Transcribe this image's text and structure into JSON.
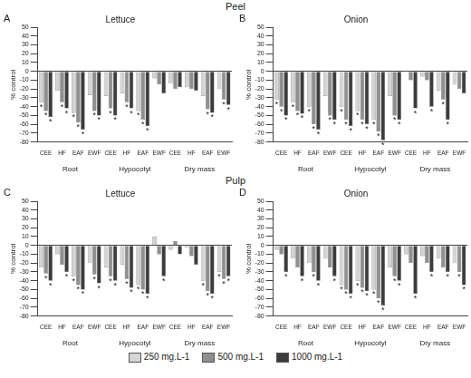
{
  "row_titles": [
    "Peel",
    "Pulp"
  ],
  "chart_data": [
    {
      "type": "bar",
      "panel": "A",
      "title": "Lettuce",
      "y_label": "% control",
      "categories": [
        "CEE",
        "HF",
        "EAF",
        "EWF",
        "CEE",
        "HF",
        "EAF",
        "EWF",
        "CEE",
        "HF",
        "EAF",
        "EWF"
      ],
      "groups": [
        "Root",
        "Hypocotyl",
        "Dry mass"
      ],
      "ylim": [
        -80,
        50
      ],
      "yticks": [
        -80,
        -70,
        -60,
        -50,
        -40,
        -30,
        -20,
        -10,
        0,
        10,
        20,
        30,
        40,
        50
      ],
      "grid": false,
      "series": [
        {
          "name": "250 mg.L-1",
          "color": "#d4d4d4",
          "values": [
            -35,
            -22,
            -47,
            -27,
            -28,
            -25,
            -45,
            -8,
            -14,
            -18,
            -28,
            -20
          ],
          "marks": [
            "*",
            null,
            "*",
            null,
            null,
            null,
            "*",
            null,
            null,
            null,
            null,
            null
          ]
        },
        {
          "name": "500 mg.L-1",
          "color": "#8f8f8f",
          "values": [
            -45,
            -35,
            -58,
            -45,
            -42,
            -35,
            -55,
            -15,
            -20,
            -20,
            -43,
            -32
          ],
          "marks": [
            "*",
            "*",
            "*",
            "*",
            "*",
            "*",
            "*",
            null,
            null,
            null,
            "*",
            "*"
          ]
        },
        {
          "name": "1000 mg.L-1",
          "color": "#3c3c3c",
          "values": [
            -52,
            -42,
            -66,
            -50,
            -50,
            -42,
            -62,
            -25,
            -18,
            -22,
            -47,
            -38
          ],
          "marks": [
            "*",
            "*",
            "*",
            "*",
            "*",
            "*",
            "*",
            null,
            null,
            null,
            "*",
            "*"
          ]
        }
      ]
    },
    {
      "type": "bar",
      "panel": "B",
      "title": "Onion",
      "y_label": "% control",
      "categories": [
        "CEE",
        "HF",
        "EAF",
        "EWF",
        "CEE",
        "HF",
        "EAF",
        "EWF",
        "CEE",
        "HF",
        "EAF",
        "EWF"
      ],
      "groups": [
        "Root",
        "Hypocotyl",
        "Dry mass"
      ],
      "ylim": [
        -80,
        50
      ],
      "yticks": [
        -80,
        -70,
        -60,
        -50,
        -40,
        -30,
        -20,
        -10,
        0,
        10,
        20,
        30,
        40,
        50
      ],
      "grid": false,
      "series": [
        {
          "name": "250 mg.L-1",
          "color": "#d4d4d4",
          "values": [
            -32,
            -35,
            -40,
            -28,
            -40,
            -45,
            -55,
            -28,
            1,
            -6,
            -22,
            -15
          ],
          "marks": [
            "*",
            "*",
            "*",
            null,
            "*",
            "*",
            "*",
            null,
            null,
            null,
            null,
            null
          ]
        },
        {
          "name": "500 mg.L-1",
          "color": "#8f8f8f",
          "values": [
            -40,
            -45,
            -60,
            -50,
            -55,
            -55,
            -68,
            -50,
            -10,
            -10,
            -32,
            -20
          ],
          "marks": [
            "*",
            "*",
            "*",
            "*",
            "*",
            "*",
            "*",
            "*",
            null,
            null,
            "*",
            null
          ]
        },
        {
          "name": "1000 mg.L-1",
          "color": "#3c3c3c",
          "values": [
            -50,
            -48,
            -66,
            -55,
            -62,
            -60,
            -78,
            -55,
            -42,
            -40,
            -55,
            -25
          ],
          "marks": [
            "*",
            "*",
            "*",
            "*",
            "*",
            "*",
            "*",
            "*",
            "*",
            "*",
            "*",
            null
          ]
        }
      ]
    },
    {
      "type": "bar",
      "panel": "C",
      "title": "Lettuce",
      "y_label": "% control",
      "categories": [
        "CEE",
        "HF",
        "EAF",
        "EWF",
        "CEE",
        "HF",
        "EAF",
        "EWF",
        "CEE",
        "HF",
        "EAF",
        "EWF"
      ],
      "groups": [
        "Root",
        "Hypocotyl",
        "Dry mass"
      ],
      "ylim": [
        -80,
        50
      ],
      "yticks": [
        -80,
        -70,
        -60,
        -50,
        -40,
        -30,
        -20,
        -10,
        0,
        10,
        20,
        30,
        40,
        50
      ],
      "grid": false,
      "series": [
        {
          "name": "250 mg.L-1",
          "color": "#d4d4d4",
          "values": [
            -25,
            -10,
            -35,
            -20,
            -25,
            -22,
            -45,
            10,
            -5,
            -2,
            -40,
            -30
          ],
          "marks": [
            null,
            null,
            "*",
            null,
            null,
            null,
            "*",
            null,
            null,
            null,
            "*",
            "*"
          ]
        },
        {
          "name": "500 mg.L-1",
          "color": "#8f8f8f",
          "values": [
            -32,
            -22,
            -45,
            -33,
            -35,
            -38,
            -50,
            -10,
            5,
            -12,
            -52,
            -38
          ],
          "marks": [
            "*",
            null,
            "*",
            "*",
            "*",
            "*",
            "*",
            null,
            null,
            null,
            "*",
            "*"
          ]
        },
        {
          "name": "1000 mg.L-1",
          "color": "#3c3c3c",
          "values": [
            -40,
            -30,
            -50,
            -43,
            -40,
            -48,
            -55,
            -35,
            -10,
            -22,
            -55,
            -35
          ],
          "marks": [
            "*",
            "*",
            "*",
            "*",
            "*",
            "*",
            "*",
            "*",
            null,
            null,
            "*",
            "*"
          ]
        }
      ]
    },
    {
      "type": "bar",
      "panel": "D",
      "title": "Onion",
      "y_label": "% control",
      "categories": [
        "CEE",
        "HF",
        "EAF",
        "EWF",
        "CEE",
        "HF",
        "EAF",
        "EWF",
        "CEE",
        "HF",
        "EAF",
        "EWF"
      ],
      "groups": [
        "Root",
        "Hypocotyl",
        "Dry mass"
      ],
      "ylim": [
        -80,
        50
      ],
      "yticks": [
        -80,
        -70,
        -60,
        -50,
        -40,
        -30,
        -20,
        -10,
        0,
        10,
        20,
        30,
        40,
        50
      ],
      "grid": false,
      "series": [
        {
          "name": "250 mg.L-1",
          "color": "#d4d4d4",
          "values": [
            -5,
            -15,
            -20,
            -15,
            -45,
            -40,
            -50,
            -25,
            -10,
            -12,
            -15,
            -20
          ],
          "marks": [
            null,
            null,
            null,
            null,
            "*",
            "*",
            "*",
            null,
            null,
            null,
            null,
            null
          ]
        },
        {
          "name": "500 mg.L-1",
          "color": "#8f8f8f",
          "values": [
            -10,
            -25,
            -30,
            -25,
            -50,
            -48,
            -60,
            -35,
            -20,
            -20,
            -25,
            -30
          ],
          "marks": [
            null,
            null,
            "*",
            null,
            "*",
            "*",
            "*",
            "*",
            null,
            null,
            null,
            "*"
          ]
        },
        {
          "name": "1000 mg.L-1",
          "color": "#3c3c3c",
          "values": [
            -30,
            -35,
            -40,
            -35,
            -55,
            -52,
            -68,
            -40,
            -55,
            -30,
            -30,
            -45
          ],
          "marks": [
            "*",
            "*",
            "*",
            "*",
            "*",
            "*",
            "*",
            "*",
            "*",
            "*",
            "*",
            "*"
          ]
        }
      ]
    }
  ]
}
